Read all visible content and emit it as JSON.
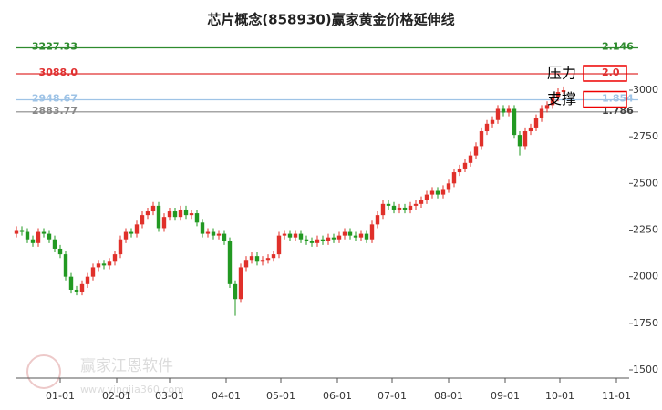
{
  "chart_data": {
    "type": "candlestick",
    "title": "芯片概念(858930)赢家黄金价格延伸线",
    "watermark": "赢家江恩软件",
    "watermark_url": "www.yingjia360.com",
    "xlim": [
      7,
      343
    ],
    "ylim": [
      1456,
      3386
    ],
    "xticks": [
      {
        "value": 31,
        "label": "01-01"
      },
      {
        "value": 62,
        "label": "02-01"
      },
      {
        "value": 91,
        "label": "03-01"
      },
      {
        "value": 122,
        "label": "04-01"
      },
      {
        "value": 152,
        "label": "05-01"
      },
      {
        "value": 183,
        "label": "06-01"
      },
      {
        "value": 213,
        "label": "07-01"
      },
      {
        "value": 244,
        "label": "08-01"
      },
      {
        "value": 275,
        "label": "09-01"
      },
      {
        "value": 305,
        "label": "10-01"
      },
      {
        "value": 336,
        "label": "11-01"
      }
    ],
    "yticks": [
      1500,
      1750,
      2000,
      2250,
      2500,
      2750,
      3000
    ],
    "up_color": "#e0302a",
    "down_color": "#229922",
    "levels": [
      {
        "value": 3227.33,
        "ratio": "2.146",
        "color": "#2e8b2e"
      },
      {
        "value": 3088,
        "value_label": "3088.0",
        "ratio": "2.0",
        "color": "#e03030"
      },
      {
        "value": 2948.67,
        "ratio": "1.854",
        "color": "#9ec3e6"
      },
      {
        "value": 2883.77,
        "ratio": "1.786",
        "color": "#888888"
      }
    ],
    "annotations": [
      {
        "text": "压力",
        "level": 1
      },
      {
        "text": "支撑",
        "level": 2
      }
    ],
    "x": [
      7,
      10,
      13,
      16,
      19,
      22,
      25,
      28,
      31,
      34,
      37,
      40,
      43,
      46,
      49,
      52,
      55,
      58,
      61,
      64,
      67,
      70,
      73,
      76,
      79,
      82,
      85,
      88,
      91,
      94,
      97,
      100,
      103,
      106,
      109,
      112,
      115,
      118,
      121,
      124,
      127,
      130,
      133,
      136,
      139,
      142,
      145,
      148,
      151,
      154,
      157,
      160,
      163,
      166,
      169,
      172,
      175,
      178,
      181,
      184,
      187,
      190,
      193,
      196,
      199,
      202,
      205,
      208,
      211,
      214,
      217,
      220,
      223,
      226,
      229,
      232,
      235,
      238,
      241,
      244,
      247,
      250,
      253,
      256,
      259,
      262,
      265,
      268,
      271,
      274,
      277,
      280,
      283,
      286,
      289,
      292,
      295,
      298,
      301,
      304,
      307
    ],
    "open": [
      2230,
      2250,
      2240,
      2200,
      2180,
      2240,
      2230,
      2200,
      2150,
      2120,
      2000,
      1930,
      1920,
      1960,
      2000,
      2050,
      2070,
      2060,
      2080,
      2120,
      2200,
      2240,
      2230,
      2280,
      2330,
      2350,
      2380,
      2260,
      2320,
      2350,
      2320,
      2360,
      2330,
      2340,
      2290,
      2230,
      2240,
      2220,
      2230,
      2190,
      1960,
      1880,
      2050,
      2090,
      2110,
      2080,
      2090,
      2100,
      2120,
      2220,
      2230,
      2210,
      2230,
      2200,
      2190,
      2180,
      2200,
      2190,
      2210,
      2200,
      2220,
      2240,
      2220,
      2210,
      2230,
      2200,
      2280,
      2330,
      2390,
      2380,
      2360,
      2370,
      2360,
      2380,
      2390,
      2410,
      2440,
      2460,
      2440,
      2470,
      2500,
      2560,
      2580,
      2610,
      2650,
      2700,
      2780,
      2820,
      2840,
      2900,
      2880,
      2900,
      2760,
      2700,
      2780,
      2800,
      2850,
      2900,
      2920,
      2960,
      2990
    ],
    "high": [
      2270,
      2270,
      2260,
      2220,
      2260,
      2260,
      2250,
      2220,
      2170,
      2140,
      2020,
      1950,
      1980,
      2020,
      2070,
      2090,
      2090,
      2100,
      2140,
      2220,
      2260,
      2260,
      2300,
      2350,
      2370,
      2400,
      2400,
      2340,
      2370,
      2370,
      2380,
      2380,
      2360,
      2360,
      2310,
      2260,
      2260,
      2250,
      2250,
      2210,
      1980,
      2070,
      2110,
      2130,
      2130,
      2110,
      2120,
      2140,
      2240,
      2250,
      2250,
      2250,
      2250,
      2220,
      2210,
      2220,
      2220,
      2230,
      2230,
      2240,
      2260,
      2260,
      2240,
      2250,
      2250,
      2300,
      2350,
      2410,
      2410,
      2400,
      2390,
      2390,
      2400,
      2410,
      2430,
      2460,
      2480,
      2480,
      2490,
      2520,
      2580,
      2600,
      2630,
      2670,
      2720,
      2800,
      2840,
      2860,
      2920,
      2920,
      2920,
      2920,
      2780,
      2800,
      2820,
      2870,
      2920,
      2940,
      2980,
      3010,
      3020
    ],
    "low": [
      2210,
      2220,
      2180,
      2160,
      2160,
      2210,
      2180,
      2130,
      2100,
      1980,
      1910,
      1900,
      1900,
      1940,
      1980,
      2030,
      2040,
      2040,
      2060,
      2100,
      2180,
      2210,
      2210,
      2260,
      2310,
      2330,
      2240,
      2240,
      2300,
      2300,
      2300,
      2310,
      2310,
      2270,
      2210,
      2210,
      2200,
      2200,
      2170,
      1940,
      1790,
      1860,
      2030,
      2070,
      2060,
      2060,
      2070,
      2080,
      2100,
      2200,
      2190,
      2190,
      2180,
      2170,
      2160,
      2160,
      2170,
      2170,
      2180,
      2180,
      2200,
      2200,
      2190,
      2190,
      2180,
      2180,
      2260,
      2310,
      2360,
      2340,
      2340,
      2340,
      2340,
      2360,
      2370,
      2390,
      2420,
      2420,
      2420,
      2450,
      2480,
      2540,
      2560,
      2590,
      2630,
      2680,
      2760,
      2800,
      2820,
      2860,
      2860,
      2740,
      2650,
      2680,
      2760,
      2780,
      2830,
      2880,
      2900,
      2940,
      2980
    ],
    "close": [
      2250,
      2240,
      2200,
      2180,
      2240,
      2230,
      2200,
      2150,
      2120,
      2000,
      1930,
      1920,
      1960,
      2000,
      2050,
      2070,
      2060,
      2080,
      2120,
      2200,
      2240,
      2230,
      2280,
      2330,
      2350,
      2380,
      2260,
      2320,
      2350,
      2320,
      2360,
      2330,
      2340,
      2290,
      2230,
      2240,
      2220,
      2230,
      2190,
      1960,
      1880,
      2050,
      2090,
      2110,
      2080,
      2090,
      2100,
      2120,
      2220,
      2230,
      2210,
      2230,
      2200,
      2190,
      2180,
      2200,
      2190,
      2210,
      2200,
      2220,
      2240,
      2220,
      2210,
      2230,
      2200,
      2280,
      2330,
      2390,
      2380,
      2360,
      2370,
      2360,
      2380,
      2390,
      2410,
      2440,
      2460,
      2440,
      2470,
      2500,
      2560,
      2580,
      2610,
      2650,
      2700,
      2780,
      2820,
      2840,
      2900,
      2880,
      2900,
      2760,
      2700,
      2780,
      2800,
      2850,
      2900,
      2920,
      2960,
      2990,
      3000
    ]
  }
}
